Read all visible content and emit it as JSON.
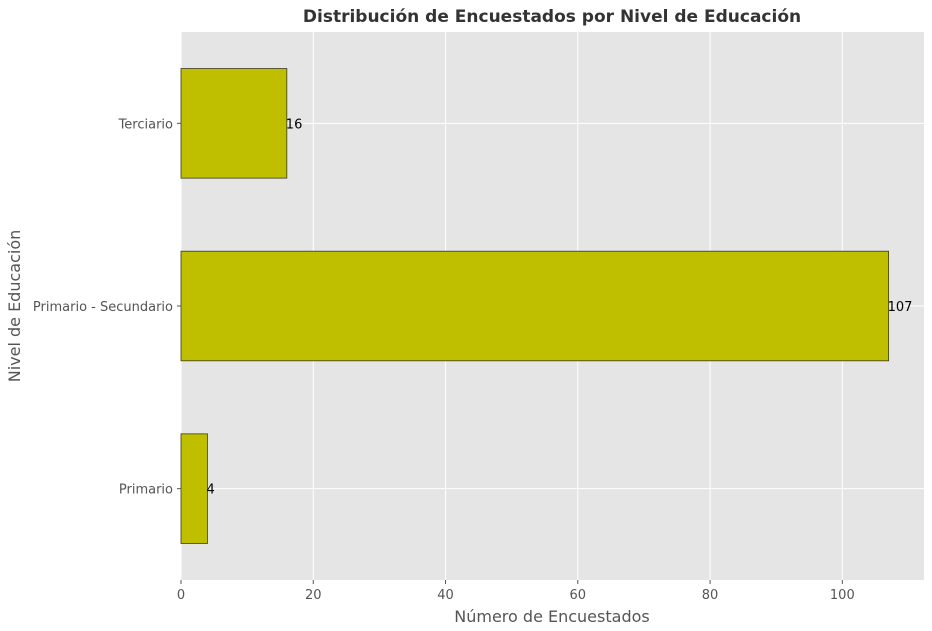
{
  "chart_data": {
    "type": "bar",
    "orientation": "horizontal",
    "title": "Distribución de Encuestados por Nivel de Educación",
    "xlabel": "Número de Encuestados",
    "ylabel": "Nivel de Educación",
    "categories": [
      "Primario",
      "Primario - Secundario",
      "Terciario"
    ],
    "values": [
      4,
      107,
      16
    ],
    "data_labels": [
      "4",
      "107",
      "16"
    ],
    "xlim": [
      0,
      112.35
    ],
    "xticks": [
      0,
      20,
      40,
      60,
      80,
      100
    ],
    "grid": true,
    "legend": "none",
    "colors": {
      "bar_fill": "#bfbf00",
      "bar_edge": "#3a3a1a",
      "plot_background": "#e5e5e5",
      "grid": "#ffffff",
      "text": "#555555",
      "title": "#333333",
      "label_text": "#000000"
    }
  }
}
